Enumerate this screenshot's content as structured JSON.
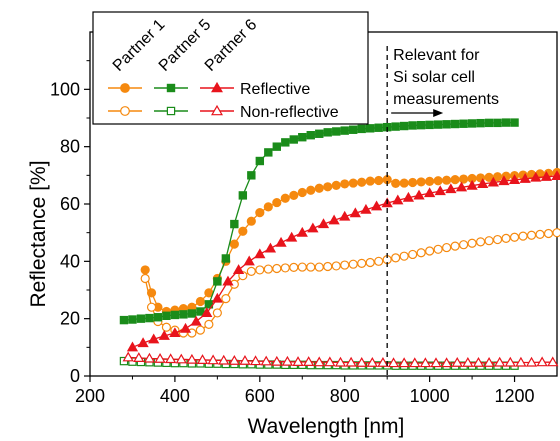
{
  "chart_data": {
    "type": "line",
    "xlabel": "Wavelength [nm]",
    "ylabel": "Reflectance [%]",
    "xlim": [
      200,
      1300
    ],
    "ylim": [
      0,
      120
    ],
    "x_ticks": [
      200,
      400,
      600,
      800,
      1000,
      1200
    ],
    "y_ticks": [
      0,
      20,
      40,
      60,
      80,
      100
    ],
    "grid": false,
    "legend": {
      "placement": "top-left",
      "column_headers": [
        "Partner 1",
        "Partner 5",
        "Partner 6"
      ],
      "row_labels": [
        "Reflective",
        "Non-reflective"
      ]
    },
    "annotation": {
      "text": [
        "Relevant for",
        "Si solar cell",
        "measurements"
      ],
      "x": 900,
      "arrow": "right"
    },
    "series": [
      {
        "partner": "Partner 1",
        "variant": "Reflective",
        "color": "#f5890f",
        "marker": "circle",
        "filled": true,
        "points": [
          [
            330,
            37
          ],
          [
            345,
            29
          ],
          [
            360,
            24
          ],
          [
            380,
            22.5
          ],
          [
            400,
            23
          ],
          [
            420,
            23.5
          ],
          [
            440,
            24
          ],
          [
            460,
            26
          ],
          [
            480,
            29
          ],
          [
            500,
            34
          ],
          [
            520,
            40
          ],
          [
            540,
            46
          ],
          [
            560,
            50.5
          ],
          [
            580,
            54
          ],
          [
            600,
            57
          ],
          [
            620,
            59
          ],
          [
            640,
            60.5
          ],
          [
            660,
            62
          ],
          [
            680,
            63
          ],
          [
            700,
            64
          ],
          [
            720,
            64.8
          ],
          [
            740,
            65.5
          ],
          [
            760,
            66
          ],
          [
            780,
            66.5
          ],
          [
            800,
            67
          ],
          [
            820,
            67.3
          ],
          [
            840,
            67.6
          ],
          [
            860,
            68
          ],
          [
            880,
            68.2
          ],
          [
            900,
            68.5
          ],
          [
            920,
            67.2
          ],
          [
            940,
            67.3
          ],
          [
            960,
            67.5
          ],
          [
            980,
            67.7
          ],
          [
            1000,
            67.9
          ],
          [
            1020,
            68.1
          ],
          [
            1040,
            68.3
          ],
          [
            1060,
            68.5
          ],
          [
            1080,
            68.7
          ],
          [
            1100,
            68.9
          ],
          [
            1120,
            69.1
          ],
          [
            1140,
            69.3
          ],
          [
            1160,
            69.5
          ],
          [
            1180,
            69.7
          ],
          [
            1200,
            69.9
          ],
          [
            1220,
            70.1
          ],
          [
            1240,
            70.3
          ],
          [
            1260,
            70.5
          ],
          [
            1280,
            70.7
          ],
          [
            1300,
            71
          ]
        ]
      },
      {
        "partner": "Partner 1",
        "variant": "Non-reflective",
        "color": "#f5890f",
        "marker": "circle",
        "filled": false,
        "points": [
          [
            330,
            34
          ],
          [
            345,
            24
          ],
          [
            360,
            19
          ],
          [
            380,
            17
          ],
          [
            400,
            16
          ],
          [
            420,
            15
          ],
          [
            440,
            15
          ],
          [
            460,
            16
          ],
          [
            480,
            18
          ],
          [
            500,
            22
          ],
          [
            520,
            27
          ],
          [
            540,
            32
          ],
          [
            560,
            35
          ],
          [
            580,
            36.5
          ],
          [
            600,
            37
          ],
          [
            620,
            37.3
          ],
          [
            640,
            37.5
          ],
          [
            660,
            37.7
          ],
          [
            680,
            37.9
          ],
          [
            700,
            38
          ],
          [
            720,
            38
          ],
          [
            740,
            38
          ],
          [
            760,
            38.2
          ],
          [
            780,
            38.4
          ],
          [
            800,
            38.7
          ],
          [
            820,
            39
          ],
          [
            840,
            39.3
          ],
          [
            860,
            39.6
          ],
          [
            880,
            40
          ],
          [
            900,
            40.6
          ],
          [
            920,
            41.2
          ],
          [
            940,
            41.8
          ],
          [
            960,
            42.4
          ],
          [
            980,
            43
          ],
          [
            1000,
            43.6
          ],
          [
            1020,
            44.2
          ],
          [
            1040,
            44.8
          ],
          [
            1060,
            45.3
          ],
          [
            1080,
            45.8
          ],
          [
            1100,
            46.3
          ],
          [
            1120,
            46.8
          ],
          [
            1140,
            47.2
          ],
          [
            1160,
            47.6
          ],
          [
            1180,
            48
          ],
          [
            1200,
            48.4
          ],
          [
            1220,
            48.8
          ],
          [
            1240,
            49.1
          ],
          [
            1260,
            49.4
          ],
          [
            1280,
            49.7
          ],
          [
            1300,
            50
          ]
        ]
      },
      {
        "partner": "Partner 5",
        "variant": "Reflective",
        "color": "#1a8c1a",
        "marker": "square",
        "filled": true,
        "points": [
          [
            280,
            19.5
          ],
          [
            300,
            19.7
          ],
          [
            320,
            20
          ],
          [
            340,
            20.2
          ],
          [
            360,
            20.5
          ],
          [
            380,
            21
          ],
          [
            400,
            21.3
          ],
          [
            420,
            21.5
          ],
          [
            440,
            21.8
          ],
          [
            460,
            22.5
          ],
          [
            480,
            25
          ],
          [
            500,
            33
          ],
          [
            520,
            41
          ],
          [
            540,
            53
          ],
          [
            560,
            63
          ],
          [
            580,
            70
          ],
          [
            600,
            75
          ],
          [
            620,
            78
          ],
          [
            640,
            80
          ],
          [
            660,
            81.5
          ],
          [
            680,
            82.5
          ],
          [
            700,
            83.3
          ],
          [
            720,
            84
          ],
          [
            740,
            84.5
          ],
          [
            760,
            85
          ],
          [
            780,
            85.3
          ],
          [
            800,
            85.6
          ],
          [
            820,
            85.9
          ],
          [
            840,
            86.2
          ],
          [
            860,
            86.4
          ],
          [
            880,
            86.6
          ],
          [
            900,
            86.8
          ],
          [
            920,
            87
          ],
          [
            940,
            87.2
          ],
          [
            960,
            87.4
          ],
          [
            980,
            87.5
          ],
          [
            1000,
            87.6
          ],
          [
            1020,
            87.7
          ],
          [
            1040,
            87.8
          ],
          [
            1060,
            87.9
          ],
          [
            1080,
            88
          ],
          [
            1100,
            88.1
          ],
          [
            1120,
            88.2
          ],
          [
            1140,
            88.3
          ],
          [
            1160,
            88.3
          ],
          [
            1180,
            88.4
          ],
          [
            1200,
            88.4
          ]
        ]
      },
      {
        "partner": "Partner 5",
        "variant": "Non-reflective",
        "color": "#1a8c1a",
        "marker": "square",
        "filled": false,
        "points": [
          [
            280,
            5.2
          ],
          [
            300,
            5
          ],
          [
            320,
            4.9
          ],
          [
            340,
            4.8
          ],
          [
            360,
            4.7
          ],
          [
            380,
            4.6
          ],
          [
            400,
            4.5
          ],
          [
            420,
            4.5
          ],
          [
            440,
            4.4
          ],
          [
            460,
            4.4
          ],
          [
            480,
            4.3
          ],
          [
            500,
            4.3
          ],
          [
            520,
            4.2
          ],
          [
            540,
            4.2
          ],
          [
            560,
            4.1
          ],
          [
            580,
            4.1
          ],
          [
            600,
            4
          ],
          [
            620,
            4
          ],
          [
            640,
            4
          ],
          [
            660,
            3.9
          ],
          [
            680,
            3.9
          ],
          [
            700,
            3.9
          ],
          [
            720,
            3.8
          ],
          [
            740,
            3.8
          ],
          [
            760,
            3.8
          ],
          [
            780,
            3.8
          ],
          [
            800,
            3.7
          ],
          [
            820,
            3.7
          ],
          [
            840,
            3.7
          ],
          [
            860,
            3.7
          ],
          [
            880,
            3.7
          ],
          [
            900,
            3.7
          ],
          [
            920,
            3.6
          ],
          [
            940,
            3.6
          ],
          [
            960,
            3.6
          ],
          [
            980,
            3.6
          ],
          [
            1000,
            3.6
          ],
          [
            1020,
            3.6
          ],
          [
            1040,
            3.6
          ],
          [
            1060,
            3.6
          ],
          [
            1080,
            3.6
          ],
          [
            1100,
            3.6
          ],
          [
            1120,
            3.6
          ],
          [
            1140,
            3.6
          ],
          [
            1160,
            3.6
          ],
          [
            1180,
            3.6
          ],
          [
            1200,
            3.6
          ]
        ]
      },
      {
        "partner": "Partner 6",
        "variant": "Reflective",
        "color": "#e8141c",
        "marker": "triangle",
        "filled": true,
        "points": [
          [
            300,
            10
          ],
          [
            325,
            11.5
          ],
          [
            350,
            12.8
          ],
          [
            375,
            14
          ],
          [
            400,
            15
          ],
          [
            425,
            16.5
          ],
          [
            450,
            19
          ],
          [
            475,
            22
          ],
          [
            500,
            27
          ],
          [
            525,
            33
          ],
          [
            550,
            37
          ],
          [
            575,
            40
          ],
          [
            600,
            42.5
          ],
          [
            625,
            44.5
          ],
          [
            650,
            46.5
          ],
          [
            675,
            48.3
          ],
          [
            700,
            50
          ],
          [
            725,
            51.5
          ],
          [
            750,
            53
          ],
          [
            775,
            54.3
          ],
          [
            800,
            55.6
          ],
          [
            825,
            56.8
          ],
          [
            850,
            58
          ],
          [
            875,
            59.2
          ],
          [
            900,
            60.3
          ],
          [
            925,
            61.3
          ],
          [
            950,
            62.2
          ],
          [
            975,
            63
          ],
          [
            1000,
            63.8
          ],
          [
            1025,
            64.5
          ],
          [
            1050,
            65.2
          ],
          [
            1075,
            65.8
          ],
          [
            1100,
            66.4
          ],
          [
            1125,
            67
          ],
          [
            1150,
            67.5
          ],
          [
            1175,
            68
          ],
          [
            1200,
            68.4
          ],
          [
            1225,
            68.8
          ],
          [
            1250,
            69.2
          ],
          [
            1275,
            69.5
          ],
          [
            1300,
            69.8
          ]
        ]
      },
      {
        "partner": "Partner 6",
        "variant": "Non-reflective",
        "color": "#e8141c",
        "marker": "triangle",
        "filled": false,
        "points": [
          [
            290,
            6.5
          ],
          [
            315,
            6.3
          ],
          [
            340,
            6.1
          ],
          [
            365,
            6
          ],
          [
            390,
            5.9
          ],
          [
            415,
            5.8
          ],
          [
            440,
            5.7
          ],
          [
            465,
            5.6
          ],
          [
            490,
            5.5
          ],
          [
            515,
            5.4
          ],
          [
            540,
            5.3
          ],
          [
            565,
            5.3
          ],
          [
            590,
            5.2
          ],
          [
            615,
            5.1
          ],
          [
            640,
            5
          ],
          [
            665,
            5
          ],
          [
            690,
            4.9
          ],
          [
            715,
            4.9
          ],
          [
            740,
            4.8
          ],
          [
            765,
            4.8
          ],
          [
            790,
            4.7
          ],
          [
            815,
            4.7
          ],
          [
            840,
            4.6
          ],
          [
            865,
            4.6
          ],
          [
            890,
            4.6
          ],
          [
            915,
            4.5
          ],
          [
            940,
            4.5
          ],
          [
            965,
            4.5
          ],
          [
            990,
            4.5
          ],
          [
            1015,
            4.5
          ],
          [
            1040,
            4.5
          ],
          [
            1065,
            4.6
          ],
          [
            1090,
            4.6
          ],
          [
            1115,
            4.6
          ],
          [
            1140,
            4.6
          ],
          [
            1165,
            4.7
          ],
          [
            1190,
            4.7
          ],
          [
            1215,
            4.7
          ],
          [
            1240,
            4.7
          ],
          [
            1265,
            4.8
          ],
          [
            1290,
            4.8
          ]
        ]
      }
    ]
  }
}
